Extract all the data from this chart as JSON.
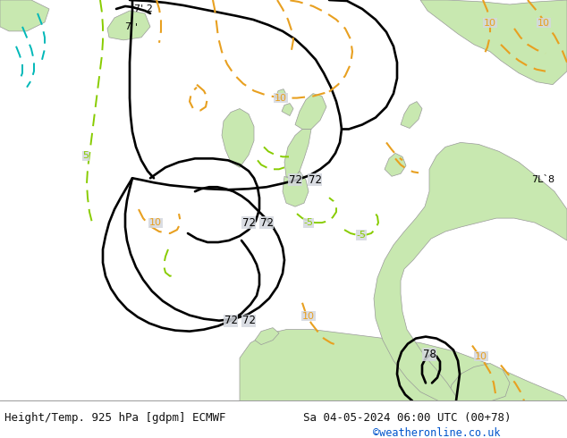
{
  "title_left": "Height/Temp. 925 hPa [gdpm] ECMWF",
  "title_right": "Sa 04-05-2024 06:00 UTC (00+78)",
  "copyright": "©weatheronline.co.uk",
  "copyright_color": "#0055cc",
  "bg_color": "#d4d8de",
  "land_color": "#c8e8b0",
  "land_edge": "#999999",
  "text_color": "#111111",
  "title_fontsize": 9.5,
  "black_contour_color": "#000000",
  "orange_contour_color": "#e8a020",
  "green_contour_color": "#88cc00",
  "cyan_contour_color": "#00b8b8"
}
